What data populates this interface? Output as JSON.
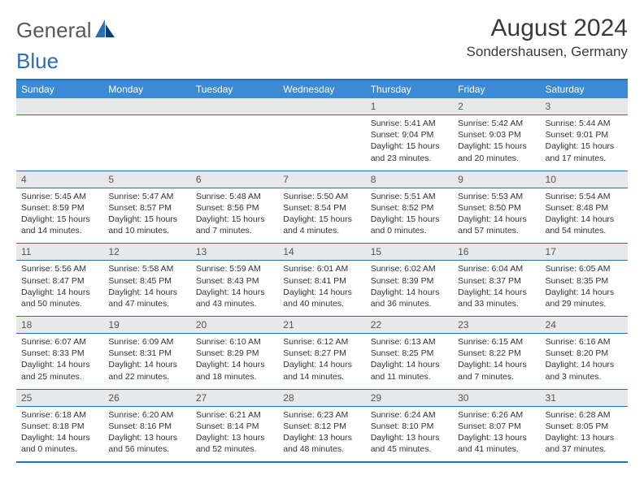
{
  "logo": {
    "text1": "General",
    "text2": "Blue"
  },
  "title": "August 2024",
  "location": "Sondershausen, Germany",
  "colors": {
    "header_bg": "#3b8bd4",
    "border": "#2a6fb5",
    "daynum_bg": "#e7e8ea",
    "text": "#333333",
    "logo_gray": "#58595b",
    "logo_blue": "#2a6fb5"
  },
  "weekdays": [
    "Sunday",
    "Monday",
    "Tuesday",
    "Wednesday",
    "Thursday",
    "Friday",
    "Saturday"
  ],
  "weeks": [
    [
      null,
      null,
      null,
      null,
      {
        "day": "1",
        "sunrise": "5:41 AM",
        "sunset": "9:04 PM",
        "daylight": "15 hours and 23 minutes."
      },
      {
        "day": "2",
        "sunrise": "5:42 AM",
        "sunset": "9:03 PM",
        "daylight": "15 hours and 20 minutes."
      },
      {
        "day": "3",
        "sunrise": "5:44 AM",
        "sunset": "9:01 PM",
        "daylight": "15 hours and 17 minutes."
      }
    ],
    [
      {
        "day": "4",
        "sunrise": "5:45 AM",
        "sunset": "8:59 PM",
        "daylight": "15 hours and 14 minutes."
      },
      {
        "day": "5",
        "sunrise": "5:47 AM",
        "sunset": "8:57 PM",
        "daylight": "15 hours and 10 minutes."
      },
      {
        "day": "6",
        "sunrise": "5:48 AM",
        "sunset": "8:56 PM",
        "daylight": "15 hours and 7 minutes."
      },
      {
        "day": "7",
        "sunrise": "5:50 AM",
        "sunset": "8:54 PM",
        "daylight": "15 hours and 4 minutes."
      },
      {
        "day": "8",
        "sunrise": "5:51 AM",
        "sunset": "8:52 PM",
        "daylight": "15 hours and 0 minutes."
      },
      {
        "day": "9",
        "sunrise": "5:53 AM",
        "sunset": "8:50 PM",
        "daylight": "14 hours and 57 minutes."
      },
      {
        "day": "10",
        "sunrise": "5:54 AM",
        "sunset": "8:48 PM",
        "daylight": "14 hours and 54 minutes."
      }
    ],
    [
      {
        "day": "11",
        "sunrise": "5:56 AM",
        "sunset": "8:47 PM",
        "daylight": "14 hours and 50 minutes."
      },
      {
        "day": "12",
        "sunrise": "5:58 AM",
        "sunset": "8:45 PM",
        "daylight": "14 hours and 47 minutes."
      },
      {
        "day": "13",
        "sunrise": "5:59 AM",
        "sunset": "8:43 PM",
        "daylight": "14 hours and 43 minutes."
      },
      {
        "day": "14",
        "sunrise": "6:01 AM",
        "sunset": "8:41 PM",
        "daylight": "14 hours and 40 minutes."
      },
      {
        "day": "15",
        "sunrise": "6:02 AM",
        "sunset": "8:39 PM",
        "daylight": "14 hours and 36 minutes."
      },
      {
        "day": "16",
        "sunrise": "6:04 AM",
        "sunset": "8:37 PM",
        "daylight": "14 hours and 33 minutes."
      },
      {
        "day": "17",
        "sunrise": "6:05 AM",
        "sunset": "8:35 PM",
        "daylight": "14 hours and 29 minutes."
      }
    ],
    [
      {
        "day": "18",
        "sunrise": "6:07 AM",
        "sunset": "8:33 PM",
        "daylight": "14 hours and 25 minutes."
      },
      {
        "day": "19",
        "sunrise": "6:09 AM",
        "sunset": "8:31 PM",
        "daylight": "14 hours and 22 minutes."
      },
      {
        "day": "20",
        "sunrise": "6:10 AM",
        "sunset": "8:29 PM",
        "daylight": "14 hours and 18 minutes."
      },
      {
        "day": "21",
        "sunrise": "6:12 AM",
        "sunset": "8:27 PM",
        "daylight": "14 hours and 14 minutes."
      },
      {
        "day": "22",
        "sunrise": "6:13 AM",
        "sunset": "8:25 PM",
        "daylight": "14 hours and 11 minutes."
      },
      {
        "day": "23",
        "sunrise": "6:15 AM",
        "sunset": "8:22 PM",
        "daylight": "14 hours and 7 minutes."
      },
      {
        "day": "24",
        "sunrise": "6:16 AM",
        "sunset": "8:20 PM",
        "daylight": "14 hours and 3 minutes."
      }
    ],
    [
      {
        "day": "25",
        "sunrise": "6:18 AM",
        "sunset": "8:18 PM",
        "daylight": "14 hours and 0 minutes."
      },
      {
        "day": "26",
        "sunrise": "6:20 AM",
        "sunset": "8:16 PM",
        "daylight": "13 hours and 56 minutes."
      },
      {
        "day": "27",
        "sunrise": "6:21 AM",
        "sunset": "8:14 PM",
        "daylight": "13 hours and 52 minutes."
      },
      {
        "day": "28",
        "sunrise": "6:23 AM",
        "sunset": "8:12 PM",
        "daylight": "13 hours and 48 minutes."
      },
      {
        "day": "29",
        "sunrise": "6:24 AM",
        "sunset": "8:10 PM",
        "daylight": "13 hours and 45 minutes."
      },
      {
        "day": "30",
        "sunrise": "6:26 AM",
        "sunset": "8:07 PM",
        "daylight": "13 hours and 41 minutes."
      },
      {
        "day": "31",
        "sunrise": "6:28 AM",
        "sunset": "8:05 PM",
        "daylight": "13 hours and 37 minutes."
      }
    ]
  ],
  "labels": {
    "sunrise": "Sunrise: ",
    "sunset": "Sunset: ",
    "daylight": "Daylight: "
  }
}
